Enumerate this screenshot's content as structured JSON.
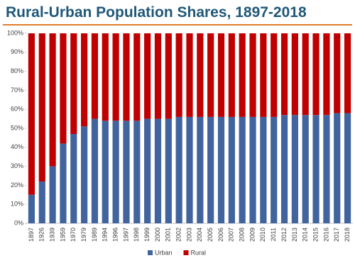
{
  "chart_data": {
    "type": "stacked_bar",
    "title": "Rural-Urban Population Shares, 1897-2018",
    "categories": [
      "1897",
      "1926",
      "1939",
      "1959",
      "1970",
      "1979",
      "1989",
      "1994",
      "1996",
      "1997",
      "1998",
      "1999",
      "2000",
      "2001",
      "2002",
      "2003",
      "2004",
      "2005",
      "2006",
      "2007",
      "2008",
      "2009",
      "2010",
      "2011",
      "2012",
      "2013",
      "2014",
      "2015",
      "2016",
      "2017",
      "2018"
    ],
    "series": [
      {
        "name": "Urban",
        "color": "#41649e",
        "values": [
          15,
          22,
          30,
          42,
          47,
          51,
          55,
          54,
          54,
          54,
          54,
          55,
          55,
          55,
          56,
          56,
          56,
          56,
          56,
          56,
          56,
          56,
          56,
          56,
          57,
          57,
          57,
          57,
          57,
          58,
          58
        ]
      },
      {
        "name": "Rural",
        "color": "#c00000",
        "values": [
          85,
          78,
          70,
          58,
          53,
          49,
          45,
          46,
          46,
          46,
          46,
          45,
          45,
          45,
          44,
          44,
          44,
          44,
          44,
          44,
          44,
          44,
          44,
          44,
          43,
          43,
          43,
          43,
          43,
          42,
          42
        ]
      }
    ],
    "ylim": [
      0,
      100
    ],
    "yticks": [
      {
        "value": 0,
        "label": "0%"
      },
      {
        "value": 10,
        "label": "10%"
      },
      {
        "value": 20,
        "label": "20%"
      },
      {
        "value": 30,
        "label": "30%"
      },
      {
        "value": 40,
        "label": "40%"
      },
      {
        "value": 50,
        "label": "50%"
      },
      {
        "value": 60,
        "label": "60%"
      },
      {
        "value": 70,
        "label": "70%"
      },
      {
        "value": 80,
        "label": "80%"
      },
      {
        "value": 90,
        "label": "90%"
      },
      {
        "value": 100,
        "label": "100%"
      }
    ],
    "legend": "bottom"
  }
}
